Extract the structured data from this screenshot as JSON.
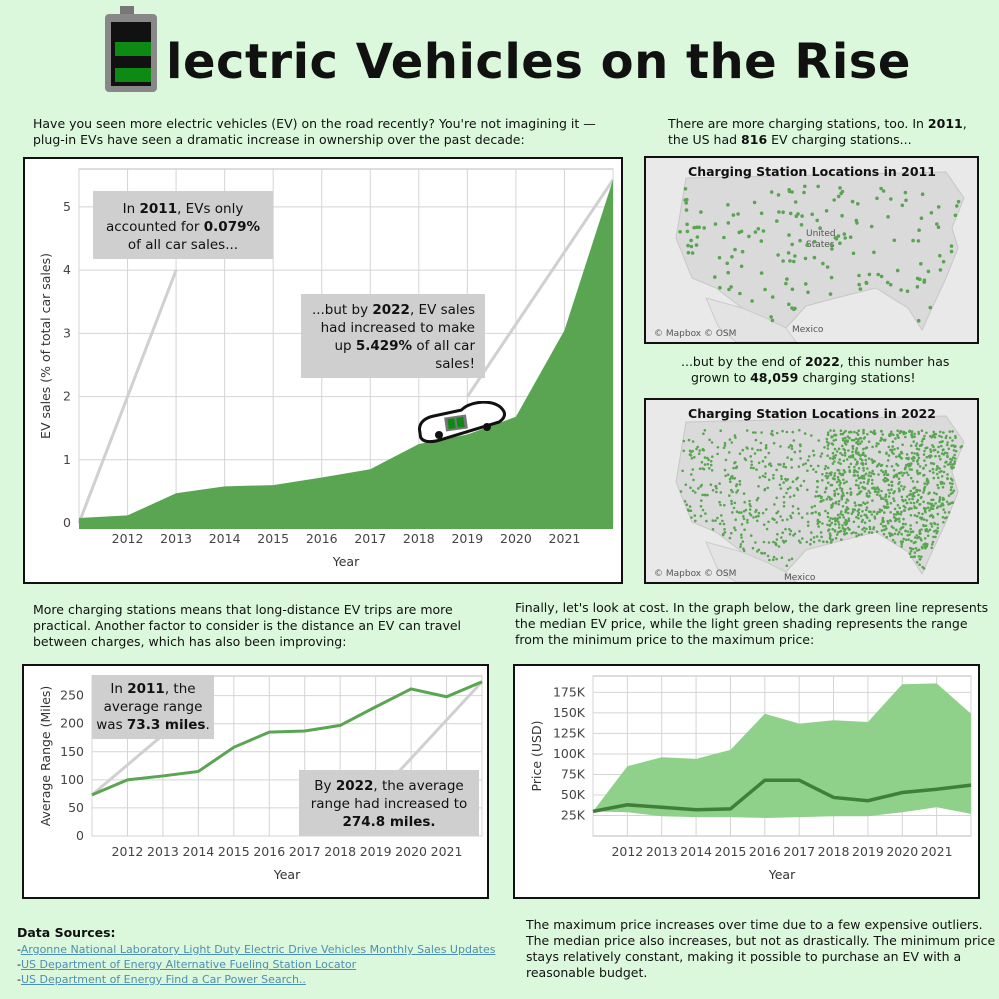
{
  "title": {
    "first_letter": "E",
    "rest": "lectric Vehicles on the Rise"
  },
  "intro": {
    "text1": "Have you seen more electric vehicles (EV) on the road recently? You're not imagining it —",
    "text2": "plug-in EVs have seen a dramatic increase in ownership over the past decade:"
  },
  "stations_intro": {
    "l1a": "There are more charging stations, too. In ",
    "l1b": "2011",
    "l1c": ",",
    "l2a": "the US had ",
    "l2b": "816",
    "l2c": " EV charging stations..."
  },
  "stations_mid": {
    "a": "...but by the end of ",
    "b": "2022",
    "c": ", this number has",
    "d": "grown to ",
    "e": "48,059",
    "f": " charging stations!"
  },
  "range_intro": {
    "l1": "More charging stations means that long-distance EV trips are more",
    "l2": "practical. Another factor to consider is the distance an EV can travel",
    "l3": "between charges, which has also been improving:"
  },
  "cost_intro": {
    "l1": "Finally, let's look at cost. In the graph below, the dark green line represents",
    "l2": "the median EV price, while the light green shading represents the range",
    "l3": "from the minimum price to the maximum price:"
  },
  "cost_outro": {
    "l1": "The maximum price increases over time due to a few expensive outliers.",
    "l2": "The median price also increases, but not as drastically. The minimum price",
    "l3": "stays relatively constant, making it possible to purchase an EV with a",
    "l4": "reasonable budget."
  },
  "sources": {
    "heading": "Data Sources:",
    "dash": "-",
    "items": [
      "Argonne National Laboratory Light Duty Electric Drive Vehicles Monthly Sales Updates",
      "US Department of Energy Alternative Fueling Station Locator",
      "US Department of Energy Find a Car Power Search.."
    ]
  },
  "callouts": {
    "sales_2011": {
      "a": "In ",
      "b": "2011",
      "c": ", EVs only",
      "d": "accounted for ",
      "e": "0.079%",
      "f": "of all car sales..."
    },
    "sales_2022": {
      "a": "...but by ",
      "b": "2022",
      "c": ", EV sales",
      "d": "had increased to make",
      "e": "up ",
      "f": "5.429%",
      "g": " of all car",
      "h": "sales!"
    },
    "range_2011": {
      "a": "In ",
      "b": "2011",
      "c": ", the",
      "d": "average range",
      "e": "was ",
      "f": "73.3 miles",
      "g": "."
    },
    "range_2022": {
      "a": "By ",
      "b": "2022",
      "c": ", the average",
      "d": "range had increased to",
      "e": "274.8 miles."
    }
  },
  "maps": {
    "m2011": {
      "title": "Charging Station Locations in 2011",
      "credit": "© Mapbox © OSM",
      "label_us1": "United",
      "label_us2": "States",
      "label_mx": "Mexico"
    },
    "m2022": {
      "title": "Charging Station Locations in 2022",
      "credit": "© Mapbox © OSM",
      "label_mx": "Mexico"
    }
  },
  "colors": {
    "background": "#dcf8dc",
    "area_green": "#5aa552",
    "dark_green": "#3f7f37",
    "light_green": "#8fd08a",
    "callout_gray": "#cfcfcf",
    "pointer_gray": "#d0d0d0"
  },
  "chart_data": [
    {
      "type": "area",
      "x": [
        2011,
        2012,
        2013,
        2014,
        2015,
        2016,
        2017,
        2018,
        2019,
        2020,
        2021,
        2022
      ],
      "series": [
        {
          "values": [
            0.079,
            0.12,
            0.47,
            0.58,
            0.6,
            0.72,
            0.85,
            1.25,
            1.4,
            1.68,
            3.05,
            5.429
          ]
        }
      ],
      "xlabel": "Year",
      "ylabel": "EV sales (% of total car sales)",
      "xticks": [
        "2012",
        "2013",
        "2014",
        "2015",
        "2016",
        "2017",
        "2018",
        "2019",
        "2020",
        "2021"
      ],
      "yticks": [
        "0",
        "1",
        "2",
        "3",
        "4",
        "5"
      ],
      "ylim": [
        0,
        5.6
      ],
      "grid": true
    },
    {
      "type": "line",
      "x": [
        2011,
        2012,
        2013,
        2014,
        2015,
        2016,
        2017,
        2018,
        2019,
        2020,
        2021,
        2022
      ],
      "series": [
        {
          "values": [
            73.3,
            100,
            107,
            115,
            158,
            185,
            187,
            197,
            230,
            262,
            248,
            274.8
          ]
        }
      ],
      "xlabel": "Year",
      "ylabel": "Average Range (Miles)",
      "xticks": [
        "2012",
        "2013",
        "2014",
        "2015",
        "2016",
        "2017",
        "2018",
        "2019",
        "2020",
        "2021"
      ],
      "yticks": [
        "0",
        "50",
        "100",
        "150",
        "200",
        "250"
      ],
      "ylim": [
        0,
        285
      ],
      "grid": true
    },
    {
      "type": "area",
      "x": [
        2011,
        2012,
        2013,
        2014,
        2015,
        2016,
        2017,
        2018,
        2019,
        2020,
        2021,
        2022
      ],
      "series": [
        {
          "values": [
            30000,
            38000,
            35000,
            32000,
            33000,
            68000,
            68000,
            47000,
            43000,
            53000,
            57000,
            62000
          ]
        },
        {
          "values": [
            30000,
            85000,
            96000,
            94000,
            105000,
            149000,
            137000,
            141000,
            139000,
            185000,
            186000,
            149000
          ]
        },
        {
          "values": [
            30000,
            29000,
            24000,
            23000,
            23000,
            22000,
            23000,
            24000,
            24000,
            29000,
            35000,
            27000
          ]
        }
      ],
      "xlabel": "Year",
      "ylabel": "Price (USD)",
      "xticks": [
        "2012",
        "2013",
        "2014",
        "2015",
        "2016",
        "2017",
        "2018",
        "2019",
        "2020",
        "2021"
      ],
      "yticks": [
        "25K",
        "50K",
        "75K",
        "100K",
        "125K",
        "150K",
        "175K"
      ],
      "ylim": [
        0,
        195000
      ],
      "grid": true
    }
  ]
}
